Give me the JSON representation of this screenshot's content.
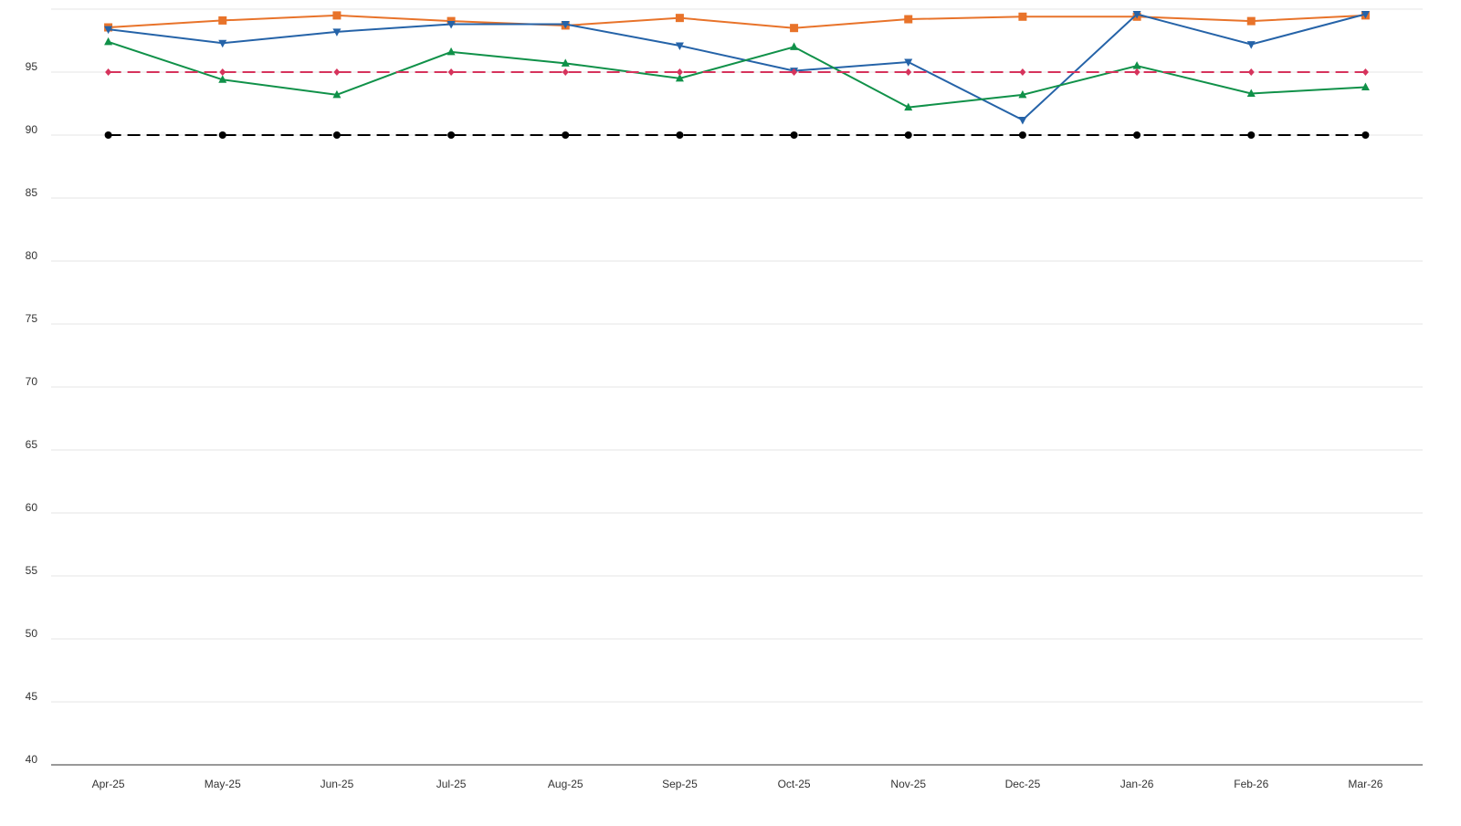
{
  "chart_data": {
    "type": "line",
    "categories": [
      "Apr-25",
      "May-25",
      "Jun-25",
      "Jul-25",
      "Aug-25",
      "Sep-25",
      "Oct-25",
      "Nov-25",
      "Dec-25",
      "Jan-26",
      "Feb-26",
      "Mar-26"
    ],
    "series": [
      {
        "color": "#e8732a",
        "marker": "square",
        "dashed": false,
        "values": [
          98.55,
          99.1,
          99.5,
          99.05,
          98.7,
          99.3,
          98.5,
          99.2,
          99.4,
          99.4,
          99.05,
          99.5
        ]
      },
      {
        "color": "#2563a8",
        "marker": "triangle-down",
        "dashed": false,
        "values": [
          98.4,
          97.3,
          98.2,
          98.8,
          98.8,
          97.1,
          95.1,
          95.8,
          91.2,
          99.6,
          97.2,
          99.6
        ]
      },
      {
        "color": "#109149",
        "marker": "triangle-up",
        "dashed": false,
        "values": [
          97.4,
          94.4,
          93.2,
          96.6,
          95.7,
          94.5,
          97.0,
          92.2,
          93.2,
          95.5,
          93.3,
          93.8
        ]
      },
      {
        "color": "#d6335c",
        "marker": "diamond",
        "dashed": true,
        "values": [
          95,
          95,
          95,
          95,
          95,
          95,
          95,
          95,
          95,
          95,
          95,
          95
        ]
      },
      {
        "color": "#000000",
        "marker": "circle",
        "dashed": true,
        "values": [
          90,
          90,
          90,
          90,
          90,
          90,
          90,
          90,
          90,
          90,
          90,
          90
        ]
      }
    ],
    "ylim": [
      40,
      100
    ],
    "yticks": [
      40,
      45,
      50,
      55,
      60,
      65,
      70,
      75,
      80,
      85,
      90,
      95
    ],
    "grid": true
  }
}
